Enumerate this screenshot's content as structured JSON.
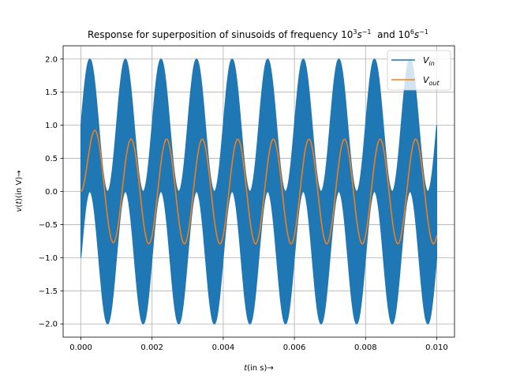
{
  "chart_data": {
    "type": "line",
    "title": "Response for superposition of sinusoids of frequency 10³s⁻¹  and 10⁶s⁻¹",
    "title_parts": {
      "lead": "Response for superposition of sinusoids of frequency 10",
      "exp1": "3",
      "s1": "s",
      "exp1b": "−1",
      "mid": "  and 10",
      "exp2": "6",
      "s2": "s",
      "exp2b": "−1"
    },
    "xlabel": "t(in s)→",
    "xlabel_parts": {
      "var": "t",
      "rest": "(in s)→"
    },
    "ylabel": "v(t)(in V)→",
    "ylabel_parts": {
      "var": "v",
      "paren": "(",
      "var2": "t",
      "rest": ")(in V)→"
    },
    "xlim": [
      -0.0005,
      0.0105
    ],
    "ylim": [
      -2.2,
      2.2
    ],
    "xticks": [
      0.0,
      0.002,
      0.004,
      0.006,
      0.008,
      0.01
    ],
    "xtick_labels": [
      "0.000",
      "0.002",
      "0.004",
      "0.006",
      "0.008",
      "0.010"
    ],
    "yticks": [
      -2.0,
      -1.5,
      -1.0,
      -0.5,
      0.0,
      0.5,
      1.0,
      1.5,
      2.0
    ],
    "ytick_labels": [
      "−2.0",
      "−1.5",
      "−1.0",
      "−0.5",
      "0.0",
      "0.5",
      "1.0",
      "1.5",
      "2.0"
    ],
    "grid": true,
    "legend_position": "top-right",
    "series": [
      {
        "name": "V_in",
        "legend": {
          "base": "V",
          "sub": "in"
        },
        "color": "#1f77b4",
        "description": "sin(2000πt) + cos(2×10⁶πt) envelope band",
        "x_range": [
          0.0,
          0.01
        ],
        "low_freq_hz": 1000,
        "high_freq_hz": 1000000,
        "amplitude_low": 1.0,
        "amplitude_high": 1.0
      },
      {
        "name": "V_out",
        "legend": {
          "base": "V",
          "sub": "out"
        },
        "color": "#ff7f0e",
        "x_range": [
          0.0,
          0.01
        ],
        "frequency_hz": 1000,
        "amplitude": 0.79,
        "start_value": 0.0,
        "phase_lag_rad": 1.0
      }
    ]
  }
}
